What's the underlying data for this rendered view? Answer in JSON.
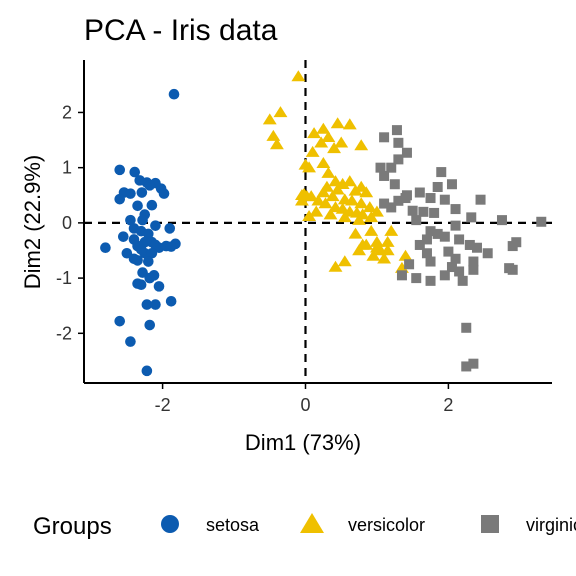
{
  "chart_data": {
    "type": "scatter",
    "title": "PCA - Iris data",
    "xlabel": "Dim1 (73%)",
    "ylabel": "Dim2 (22.9%)",
    "xlim": [
      -3.1,
      3.45
    ],
    "ylim": [
      -2.9,
      2.95
    ],
    "x_ticks": [
      -2,
      0,
      2
    ],
    "y_ticks": [
      -2,
      -1,
      0,
      1,
      2
    ],
    "x_tick_labels": [
      "-2",
      "0",
      "2"
    ],
    "y_tick_labels": [
      "-2",
      "-1",
      "0",
      "1",
      "2"
    ],
    "reference_lines": {
      "x": 0,
      "y": 0,
      "style": "dashed"
    },
    "grid": false,
    "legend": {
      "title": "Groups",
      "position": "bottom"
    },
    "series": [
      {
        "name": "setosa",
        "color": "#0C5BB0",
        "marker": "circle",
        "points": [
          [
            -1.84,
            2.33
          ],
          [
            -2.6,
            0.96
          ],
          [
            -2.39,
            0.92
          ],
          [
            -2.54,
            0.55
          ],
          [
            -2.32,
            0.77
          ],
          [
            -2.22,
            0.73
          ],
          [
            -2.1,
            0.72
          ],
          [
            -2.18,
            0.68
          ],
          [
            -2.02,
            0.62
          ],
          [
            -1.98,
            0.53
          ],
          [
            -2.29,
            0.55
          ],
          [
            -2.45,
            0.53
          ],
          [
            -2.6,
            0.43
          ],
          [
            -2.35,
            0.31
          ],
          [
            -2.15,
            0.32
          ],
          [
            -2.25,
            0.15
          ],
          [
            -2.45,
            0.05
          ],
          [
            -2.28,
            0.05
          ],
          [
            -2.1,
            -0.05
          ],
          [
            -2.4,
            -0.1
          ],
          [
            -2.55,
            -0.25
          ],
          [
            -2.3,
            -0.15
          ],
          [
            -2.2,
            -0.2
          ],
          [
            -1.9,
            -0.1
          ],
          [
            -2.15,
            -0.35
          ],
          [
            -2.1,
            -0.4
          ],
          [
            -2.25,
            -0.35
          ],
          [
            -2.35,
            -0.42
          ],
          [
            -2.4,
            -0.3
          ],
          [
            -2.05,
            -0.45
          ],
          [
            -1.95,
            -0.42
          ],
          [
            -2.25,
            -0.55
          ],
          [
            -2.3,
            -0.48
          ],
          [
            -2.15,
            -0.55
          ],
          [
            -2.8,
            -0.45
          ],
          [
            -2.5,
            -0.55
          ],
          [
            -1.82,
            -0.38
          ],
          [
            -1.88,
            -0.43
          ],
          [
            -2.4,
            -0.65
          ],
          [
            -2.35,
            -0.68
          ],
          [
            -2.2,
            -0.7
          ],
          [
            -2.28,
            -0.9
          ],
          [
            -2.12,
            -0.95
          ],
          [
            -2.18,
            -1.0
          ],
          [
            -2.35,
            -1.1
          ],
          [
            -2.3,
            -1.12
          ],
          [
            -2.05,
            -1.15
          ],
          [
            -2.22,
            -1.48
          ],
          [
            -2.1,
            -1.48
          ],
          [
            -1.88,
            -1.42
          ],
          [
            -2.6,
            -1.78
          ],
          [
            -2.18,
            -1.85
          ],
          [
            -2.45,
            -2.15
          ],
          [
            -2.22,
            -2.68
          ]
        ]
      },
      {
        "name": "versicolor",
        "color": "#EFC000",
        "marker": "triangle",
        "points": [
          [
            -0.1,
            2.65
          ],
          [
            -0.35,
            2.0
          ],
          [
            -0.5,
            1.87
          ],
          [
            -0.45,
            1.57
          ],
          [
            -0.4,
            1.42
          ],
          [
            0.62,
            1.78
          ],
          [
            0.45,
            1.8
          ],
          [
            0.25,
            1.7
          ],
          [
            0.12,
            1.62
          ],
          [
            0.32,
            1.55
          ],
          [
            0.5,
            1.45
          ],
          [
            0.78,
            1.4
          ],
          [
            0.22,
            1.45
          ],
          [
            0.4,
            1.35
          ],
          [
            0.1,
            1.28
          ],
          [
            0.0,
            1.05
          ],
          [
            0.05,
            1.0
          ],
          [
            0.25,
            1.08
          ],
          [
            0.32,
            0.9
          ],
          [
            0.42,
            0.75
          ],
          [
            0.3,
            0.65
          ],
          [
            0.45,
            0.6
          ],
          [
            0.52,
            0.7
          ],
          [
            0.62,
            0.75
          ],
          [
            0.7,
            0.58
          ],
          [
            0.78,
            0.65
          ],
          [
            0.85,
            0.55
          ],
          [
            0.25,
            0.55
          ],
          [
            0.38,
            0.48
          ],
          [
            0.55,
            0.42
          ],
          [
            0.65,
            0.4
          ],
          [
            0.78,
            0.35
          ],
          [
            0.9,
            0.28
          ],
          [
            1.0,
            0.2
          ],
          [
            0.08,
            0.48
          ],
          [
            0.18,
            0.4
          ],
          [
            0.28,
            0.35
          ],
          [
            0.42,
            0.28
          ],
          [
            0.52,
            0.25
          ],
          [
            0.62,
            0.2
          ],
          [
            0.72,
            0.18
          ],
          [
            0.8,
            0.15
          ],
          [
            0.92,
            0.1
          ],
          [
            0.15,
            0.2
          ],
          [
            0.35,
            0.15
          ],
          [
            0.55,
            0.1
          ],
          [
            -0.05,
            0.5
          ],
          [
            -0.05,
            0.4
          ],
          [
            0.02,
            0.48
          ],
          [
            0.05,
            0.12
          ],
          [
            -0.02,
            0.52
          ],
          [
            0.75,
            0.05
          ],
          [
            0.85,
            -0.4
          ],
          [
            0.95,
            -0.6
          ],
          [
            0.92,
            -0.15
          ],
          [
            1.15,
            -0.35
          ],
          [
            1.15,
            -0.5
          ],
          [
            1.05,
            -0.5
          ],
          [
            1.0,
            -0.45
          ],
          [
            0.75,
            -0.5
          ],
          [
            0.55,
            -0.7
          ],
          [
            1.1,
            -0.65
          ],
          [
            1.4,
            -0.6
          ],
          [
            0.42,
            -0.8
          ],
          [
            1.35,
            -0.82
          ],
          [
            0.7,
            -0.2
          ],
          [
            1.0,
            -0.35
          ],
          [
            0.8,
            -0.4
          ],
          [
            1.2,
            -0.15
          ]
        ]
      },
      {
        "name": "virginica",
        "color": "#7A7A7A",
        "marker": "square",
        "points": [
          [
            1.28,
            1.68
          ],
          [
            1.1,
            1.55
          ],
          [
            1.3,
            1.45
          ],
          [
            1.42,
            1.27
          ],
          [
            1.3,
            1.15
          ],
          [
            1.2,
            1.0
          ],
          [
            1.05,
            1.0
          ],
          [
            1.1,
            0.85
          ],
          [
            1.25,
            0.7
          ],
          [
            1.42,
            0.5
          ],
          [
            1.6,
            0.55
          ],
          [
            1.9,
            0.92
          ],
          [
            2.05,
            0.7
          ],
          [
            1.85,
            0.65
          ],
          [
            1.4,
            0.45
          ],
          [
            1.75,
            0.45
          ],
          [
            1.95,
            0.42
          ],
          [
            1.3,
            0.4
          ],
          [
            1.1,
            0.35
          ],
          [
            1.5,
            0.22
          ],
          [
            1.65,
            0.2
          ],
          [
            1.8,
            0.18
          ],
          [
            2.1,
            0.25
          ],
          [
            2.45,
            0.42
          ],
          [
            2.32,
            0.1
          ],
          [
            1.55,
            0.05
          ],
          [
            1.2,
            0.28
          ],
          [
            3.3,
            0.02
          ],
          [
            2.75,
            0.05
          ],
          [
            2.1,
            -0.05
          ],
          [
            1.75,
            -0.15
          ],
          [
            1.85,
            -0.2
          ],
          [
            1.7,
            -0.3
          ],
          [
            1.6,
            -0.4
          ],
          [
            1.95,
            -0.25
          ],
          [
            1.7,
            -0.55
          ],
          [
            2.15,
            -0.3
          ],
          [
            2.3,
            -0.4
          ],
          [
            2.4,
            -0.45
          ],
          [
            2.35,
            -0.7
          ],
          [
            2.0,
            -0.52
          ],
          [
            2.9,
            -0.42
          ],
          [
            2.95,
            -0.35
          ],
          [
            2.55,
            -0.55
          ],
          [
            1.75,
            -0.7
          ],
          [
            1.45,
            -0.75
          ],
          [
            1.35,
            -0.95
          ],
          [
            1.55,
            -1.0
          ],
          [
            1.75,
            -1.05
          ],
          [
            1.95,
            -0.95
          ],
          [
            2.05,
            -0.8
          ],
          [
            2.15,
            -0.88
          ],
          [
            2.2,
            -1.05
          ],
          [
            2.35,
            -0.85
          ],
          [
            2.85,
            -0.82
          ],
          [
            2.9,
            -0.85
          ],
          [
            2.25,
            -1.9
          ],
          [
            2.35,
            -2.55
          ],
          [
            2.25,
            -2.6
          ],
          [
            2.1,
            -0.65
          ]
        ]
      }
    ]
  }
}
